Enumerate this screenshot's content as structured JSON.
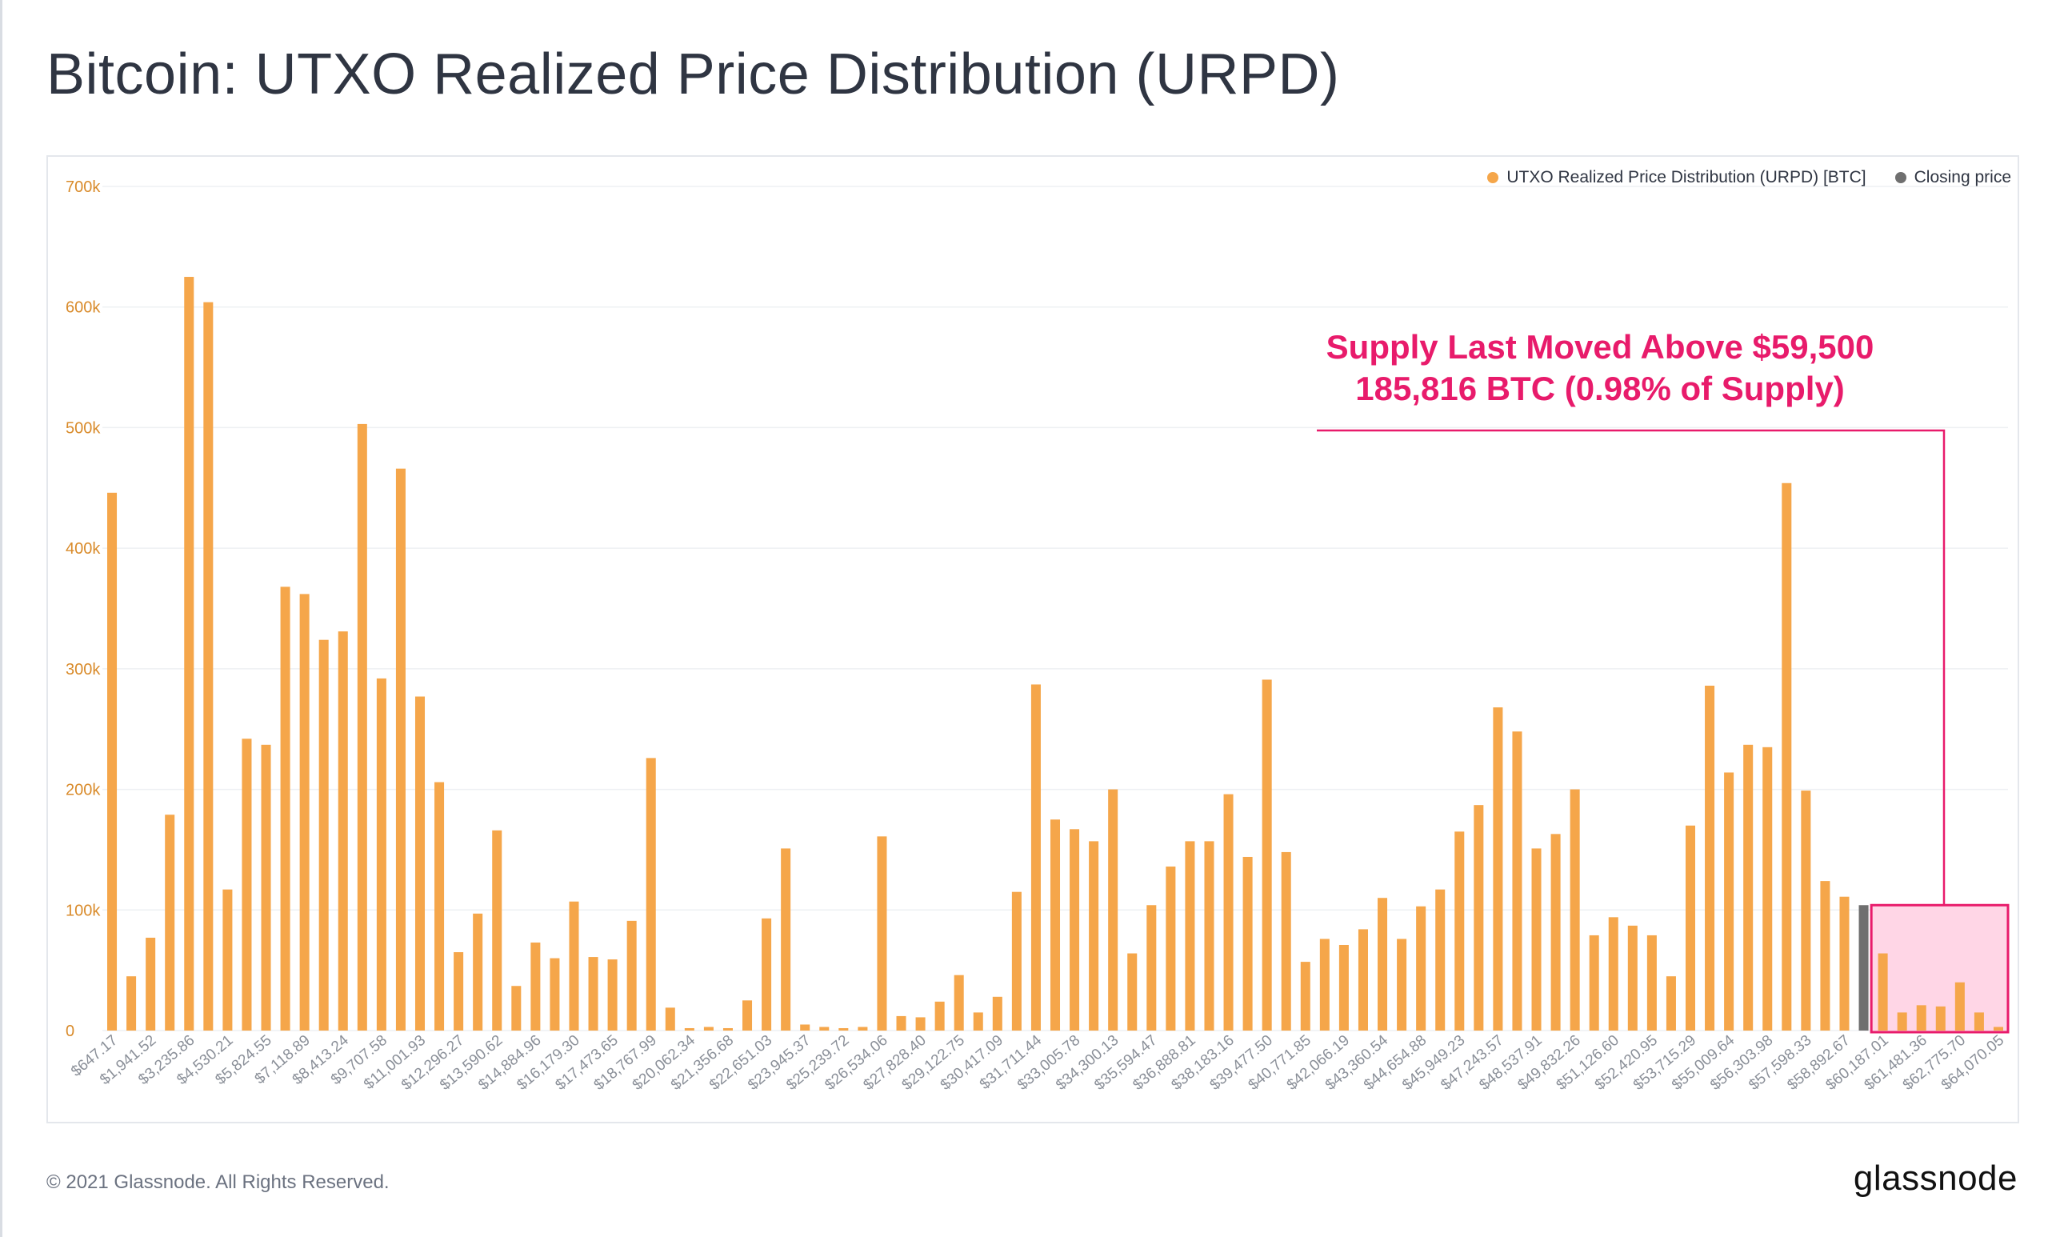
{
  "page": {
    "title": "Bitcoin: UTXO Realized Price Distribution (URPD)",
    "copyright": "© 2021 Glassnode. All Rights Reserved.",
    "logo": "glassnode"
  },
  "legend": {
    "series_1": "UTXO Realized Price Distribution (URPD) [BTC]",
    "series_2": "Closing price"
  },
  "annotation": {
    "line1": "Supply Last Moved Above $59,500",
    "line2": "185,816 BTC (0.98% of Supply)",
    "color": "#e81b6b"
  },
  "colors": {
    "bar": "#f5a64a",
    "closing": "#6f6f6f",
    "highlight_fill": "#ffd6e6",
    "highlight_stroke": "#e81b6b",
    "axis_text": "#d98b2b"
  },
  "chart_data": {
    "type": "bar",
    "ylim": [
      0,
      700000
    ],
    "yticks": [
      0,
      100000,
      200000,
      300000,
      400000,
      500000,
      600000,
      700000
    ],
    "ytick_labels": [
      "0",
      "100k",
      "200k",
      "300k",
      "400k",
      "500k",
      "600k",
      "700k"
    ],
    "xtick_labels": [
      "$647.17",
      "$1,941.52",
      "$3,235.86",
      "$4,530.21",
      "$5,824.55",
      "$7,118.89",
      "$8,413.24",
      "$9,707.58",
      "$11,001.93",
      "$12,296.27",
      "$13,590.62",
      "$14,884.96",
      "$16,179.30",
      "$17,473.65",
      "$18,767.99",
      "$20,062.34",
      "$21,356.68",
      "$22,651.03",
      "$23,945.37",
      "$25,239.72",
      "$26,534.06",
      "$27,828.40",
      "$29,122.75",
      "$30,417.09",
      "$31,711.44",
      "$33,005.78",
      "$34,300.13",
      "$35,594.47",
      "$36,888.81",
      "$38,183.16",
      "$39,477.50",
      "$40,771.85",
      "$42,066.19",
      "$43,360.54",
      "$44,654.88",
      "$45,949.23",
      "$47,243.57",
      "$48,537.91",
      "$49,832.26",
      "$51,126.60",
      "$52,420.95",
      "$53,715.29",
      "$55,009.64",
      "$56,303.98",
      "$57,598.33",
      "$58,892.67",
      "$60,187.01",
      "$61,481.36",
      "$62,775.70",
      "$64,070.05"
    ],
    "series": [
      {
        "name": "UTXO Realized Price Distribution (URPD) [BTC]",
        "values": [
          446000,
          45000,
          77000,
          179000,
          625000,
          604000,
          117000,
          242000,
          237000,
          368000,
          362000,
          324000,
          331000,
          503000,
          292000,
          466000,
          277000,
          206000,
          65000,
          97000,
          166000,
          37000,
          73000,
          60000,
          107000,
          61000,
          59000,
          91000,
          226000,
          19000,
          2000,
          3000,
          2000,
          25000,
          93000,
          151000,
          5000,
          3000,
          2000,
          3000,
          161000,
          12000,
          11000,
          24000,
          46000,
          15000,
          28000,
          115000,
          287000,
          175000,
          167000,
          157000,
          200000,
          64000,
          104000,
          136000,
          157000,
          157000,
          196000,
          144000,
          291000,
          148000,
          57000,
          76000,
          71000,
          84000,
          110000,
          76000,
          103000,
          117000,
          165000,
          187000,
          268000,
          248000,
          151000,
          163000,
          200000,
          79000,
          94000,
          87000,
          79000,
          45000,
          170000,
          286000,
          214000,
          237000,
          235000,
          454000,
          199000,
          124000,
          111000,
          104000,
          64000,
          15000,
          21000,
          20000,
          40000,
          15000,
          3000
        ]
      }
    ],
    "closing_price_bar_index": 91,
    "highlight_range": [
      91,
      98
    ]
  }
}
